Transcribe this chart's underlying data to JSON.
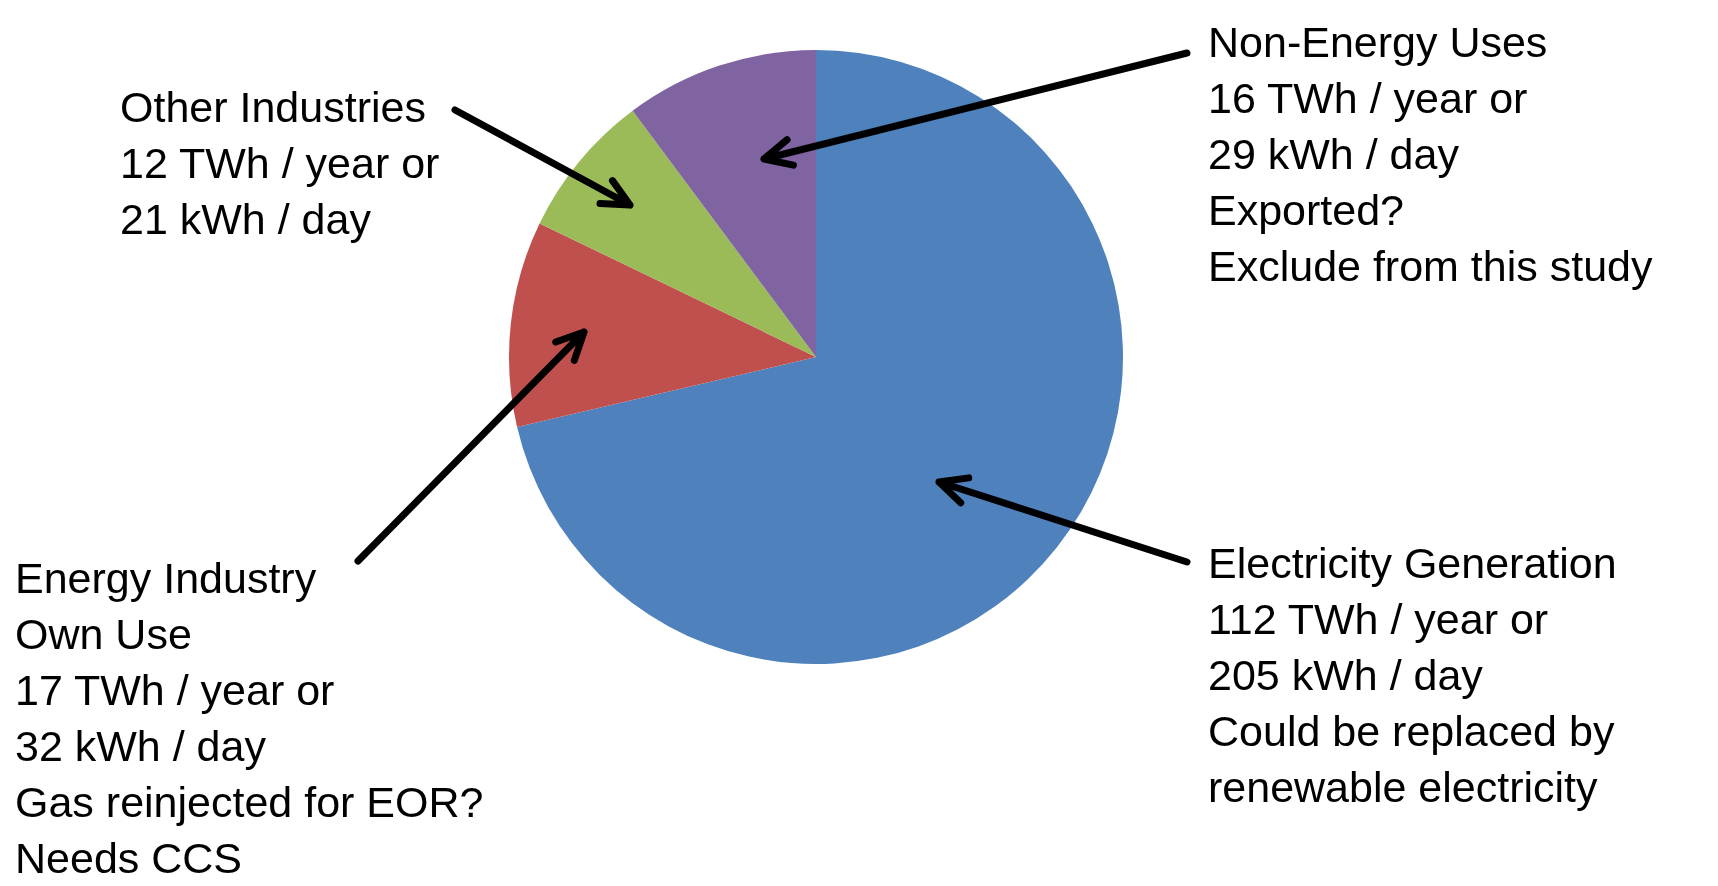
{
  "chart_data": {
    "type": "pie",
    "categories": [
      "Electricity Generation",
      "Energy Industry Own Use",
      "Other Industries",
      "Non-Energy Uses"
    ],
    "values": [
      112,
      17,
      12,
      16
    ],
    "colors": [
      "#4f81bd",
      "#c0504d",
      "#9bbb59",
      "#8064a2"
    ],
    "value_labels": [
      "112 TWh / year or\n205 kWh / day",
      "17 TWh / year or\n32 kWh / day",
      "12 TWh / year or\n21 kWh / day",
      "16 TWh / year or\n29 kWh / day"
    ],
    "annotations": [
      {
        "text": "Could be replaced by\nrenewable electricity",
        "x": "Electricity Generation"
      },
      {
        "text": "Gas reinjected for EOR?\nNeeds CCS",
        "x": "Energy Industry Own Use"
      },
      {
        "text": "Exported?\nExclude from this study",
        "x": "Non-Energy Uses"
      }
    ],
    "legend": false
  }
}
